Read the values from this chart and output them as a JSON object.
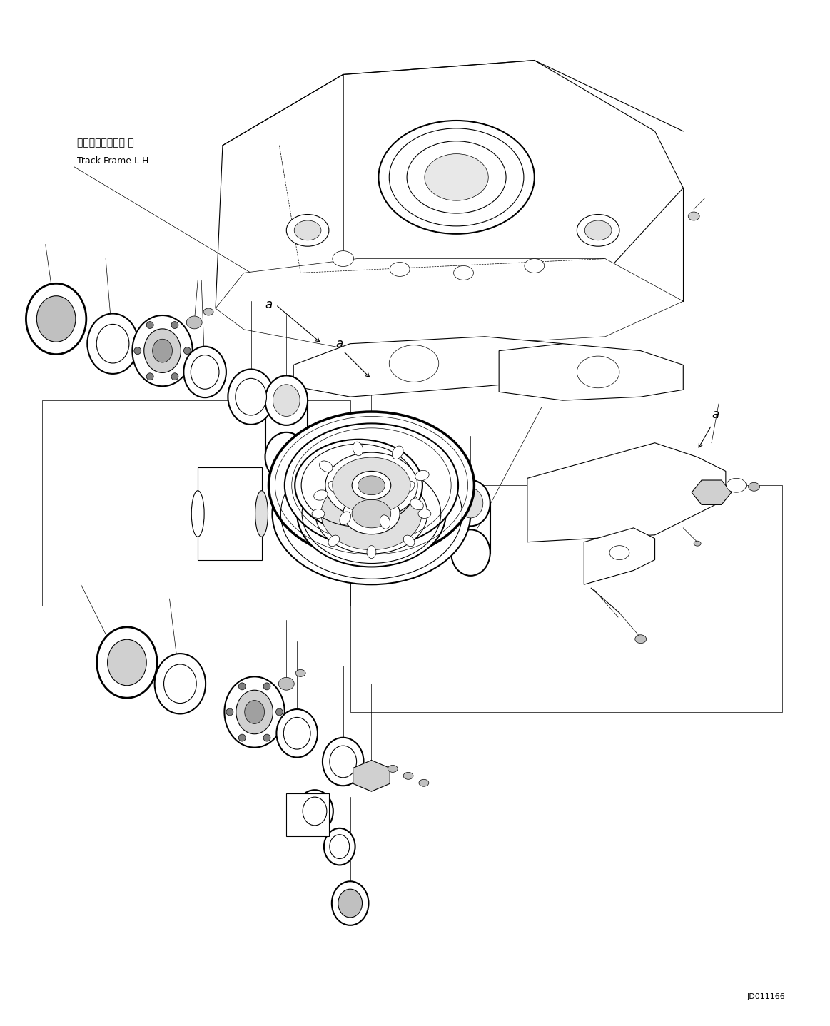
{
  "background_color": "#ffffff",
  "line_color": "#000000",
  "fig_width": 11.63,
  "fig_height": 14.38,
  "dpi": 100,
  "label_japanese": "トラックフレーム 左",
  "label_english": "Track Frame L.H.",
  "watermark": "JD011166",
  "font_size_label": 9,
  "font_size_watermark": 8,
  "font_size_a": 12,
  "iso_sx": 0.866,
  "iso_sy": 0.5
}
